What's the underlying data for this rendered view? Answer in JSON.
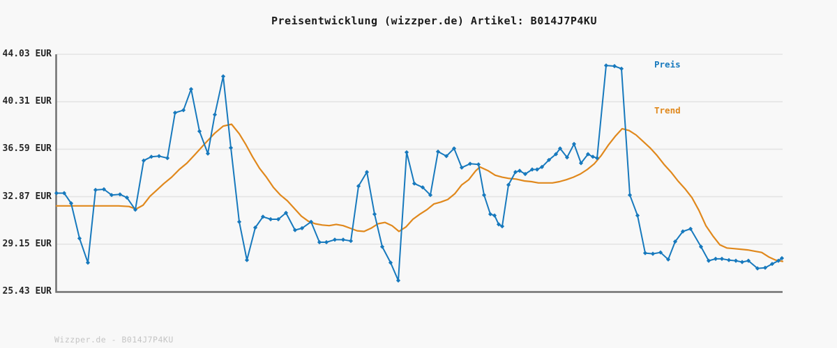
{
  "watermark": "Wizzper.de - B014J7P4KU",
  "colors": {
    "background": "#f8f8f8",
    "grid": "#e4e4e4",
    "axis": "#717171",
    "title": "#1a1a1a",
    "tick_label": "#262626",
    "watermark": "#c4c4c4",
    "price": "#1779bd",
    "trend": "#e0881c"
  },
  "chart_data": {
    "type": "line",
    "title": "Preisentwicklung (wizzper.de) Artikel: B014J7P4KU",
    "xlabel": "",
    "ylabel": "",
    "currency": "EUR",
    "ylim": [
      25.43,
      44.03
    ],
    "x_unit": "px",
    "grid": true,
    "legend_position": "top-right",
    "yticks": [
      {
        "value": 44.03,
        "label": "44.03 EUR"
      },
      {
        "value": 40.31,
        "label": "40.31 EUR"
      },
      {
        "value": 36.59,
        "label": "36.59 EUR"
      },
      {
        "value": 32.87,
        "label": "32.87 EUR"
      },
      {
        "value": 29.15,
        "label": "29.15 EUR"
      },
      {
        "value": 25.43,
        "label": "25.43 EUR"
      }
    ],
    "series": [
      {
        "name": "Trend",
        "color": "#e0881c",
        "marker": "none",
        "stroke_width": 2.2,
        "points": [
          [
            81,
            32.15
          ],
          [
            110,
            32.15
          ],
          [
            140,
            32.15
          ],
          [
            170,
            32.15
          ],
          [
            185,
            32.1
          ],
          [
            195,
            31.9
          ],
          [
            205,
            32.2
          ],
          [
            215,
            32.9
          ],
          [
            225,
            33.4
          ],
          [
            235,
            33.9
          ],
          [
            246,
            34.4
          ],
          [
            257,
            35.0
          ],
          [
            268,
            35.5
          ],
          [
            280,
            36.2
          ],
          [
            295,
            37.1
          ],
          [
            308,
            37.85
          ],
          [
            320,
            38.4
          ],
          [
            332,
            38.55
          ],
          [
            343,
            37.8
          ],
          [
            352,
            37.0
          ],
          [
            362,
            36.0
          ],
          [
            372,
            35.1
          ],
          [
            382,
            34.4
          ],
          [
            392,
            33.6
          ],
          [
            402,
            33.0
          ],
          [
            412,
            32.55
          ],
          [
            422,
            31.95
          ],
          [
            432,
            31.35
          ],
          [
            442,
            30.95
          ],
          [
            452,
            30.75
          ],
          [
            462,
            30.65
          ],
          [
            472,
            30.6
          ],
          [
            482,
            30.7
          ],
          [
            492,
            30.6
          ],
          [
            502,
            30.4
          ],
          [
            512,
            30.2
          ],
          [
            522,
            30.15
          ],
          [
            532,
            30.4
          ],
          [
            542,
            30.75
          ],
          [
            552,
            30.85
          ],
          [
            562,
            30.6
          ],
          [
            572,
            30.15
          ],
          [
            582,
            30.5
          ],
          [
            592,
            31.1
          ],
          [
            602,
            31.5
          ],
          [
            612,
            31.85
          ],
          [
            622,
            32.3
          ],
          [
            632,
            32.45
          ],
          [
            642,
            32.65
          ],
          [
            652,
            33.1
          ],
          [
            662,
            33.8
          ],
          [
            672,
            34.2
          ],
          [
            682,
            34.9
          ],
          [
            688,
            35.2
          ],
          [
            700,
            34.9
          ],
          [
            710,
            34.55
          ],
          [
            720,
            34.4
          ],
          [
            730,
            34.3
          ],
          [
            740,
            34.25
          ],
          [
            752,
            34.1
          ],
          [
            762,
            34.05
          ],
          [
            772,
            33.95
          ],
          [
            782,
            33.95
          ],
          [
            792,
            33.95
          ],
          [
            802,
            34.05
          ],
          [
            812,
            34.2
          ],
          [
            822,
            34.4
          ],
          [
            832,
            34.65
          ],
          [
            842,
            35.0
          ],
          [
            852,
            35.45
          ],
          [
            862,
            36.1
          ],
          [
            872,
            36.9
          ],
          [
            882,
            37.6
          ],
          [
            892,
            38.2
          ],
          [
            902,
            38.05
          ],
          [
            912,
            37.7
          ],
          [
            922,
            37.2
          ],
          [
            932,
            36.7
          ],
          [
            942,
            36.1
          ],
          [
            952,
            35.4
          ],
          [
            962,
            34.8
          ],
          [
            972,
            34.1
          ],
          [
            982,
            33.5
          ],
          [
            992,
            32.8
          ],
          [
            1002,
            31.8
          ],
          [
            1012,
            30.6
          ],
          [
            1022,
            29.8
          ],
          [
            1032,
            29.1
          ],
          [
            1042,
            28.85
          ],
          [
            1052,
            28.8
          ],
          [
            1062,
            28.75
          ],
          [
            1072,
            28.7
          ],
          [
            1082,
            28.6
          ],
          [
            1092,
            28.5
          ],
          [
            1102,
            28.15
          ],
          [
            1112,
            27.9
          ],
          [
            1122,
            27.8
          ]
        ]
      },
      {
        "name": "Preis",
        "color": "#1779bd",
        "marker": "diamond",
        "stroke_width": 2,
        "points": [
          [
            81,
            33.15
          ],
          [
            92,
            33.15
          ],
          [
            102,
            32.35
          ],
          [
            114,
            29.6
          ],
          [
            126,
            27.7
          ],
          [
            137,
            33.4
          ],
          [
            149,
            33.45
          ],
          [
            160,
            33.0
          ],
          [
            172,
            33.05
          ],
          [
            182,
            32.8
          ],
          [
            194,
            31.85
          ],
          [
            206,
            35.7
          ],
          [
            217,
            36.0
          ],
          [
            228,
            36.05
          ],
          [
            240,
            35.9
          ],
          [
            251,
            39.45
          ],
          [
            263,
            39.65
          ],
          [
            274,
            41.3
          ],
          [
            286,
            38.0
          ],
          [
            298,
            36.25
          ],
          [
            308,
            39.3
          ],
          [
            320,
            42.3
          ],
          [
            331,
            36.7
          ],
          [
            343,
            30.9
          ],
          [
            354,
            27.9
          ],
          [
            366,
            30.45
          ],
          [
            377,
            31.3
          ],
          [
            388,
            31.1
          ],
          [
            399,
            31.1
          ],
          [
            410,
            31.6
          ],
          [
            423,
            30.25
          ],
          [
            433,
            30.4
          ],
          [
            446,
            30.9
          ],
          [
            458,
            29.3
          ],
          [
            468,
            29.3
          ],
          [
            480,
            29.5
          ],
          [
            492,
            29.5
          ],
          [
            503,
            29.4
          ],
          [
            514,
            33.7
          ],
          [
            526,
            34.8
          ],
          [
            537,
            31.5
          ],
          [
            548,
            28.95
          ],
          [
            560,
            27.7
          ],
          [
            571,
            26.3
          ],
          [
            583,
            36.35
          ],
          [
            594,
            33.9
          ],
          [
            606,
            33.6
          ],
          [
            617,
            33.0
          ],
          [
            628,
            36.4
          ],
          [
            640,
            36.05
          ],
          [
            651,
            36.65
          ],
          [
            662,
            35.15
          ],
          [
            674,
            35.45
          ],
          [
            686,
            35.4
          ],
          [
            694,
            33.0
          ],
          [
            703,
            31.5
          ],
          [
            709,
            31.4
          ],
          [
            715,
            30.7
          ],
          [
            720,
            30.55
          ],
          [
            729,
            33.8
          ],
          [
            739,
            34.8
          ],
          [
            745,
            34.9
          ],
          [
            753,
            34.65
          ],
          [
            763,
            35.0
          ],
          [
            770,
            35.0
          ],
          [
            777,
            35.2
          ],
          [
            787,
            35.75
          ],
          [
            797,
            36.2
          ],
          [
            803,
            36.65
          ],
          [
            813,
            35.95
          ],
          [
            823,
            37.0
          ],
          [
            833,
            35.5
          ],
          [
            843,
            36.2
          ],
          [
            850,
            36.0
          ],
          [
            856,
            35.9
          ],
          [
            869,
            43.15
          ],
          [
            881,
            43.1
          ],
          [
            891,
            42.9
          ],
          [
            903,
            33.0
          ],
          [
            914,
            31.4
          ],
          [
            925,
            28.45
          ],
          [
            936,
            28.4
          ],
          [
            947,
            28.5
          ],
          [
            958,
            27.95
          ],
          [
            968,
            29.35
          ],
          [
            979,
            30.15
          ],
          [
            990,
            30.35
          ],
          [
            1005,
            28.95
          ],
          [
            1016,
            27.85
          ],
          [
            1026,
            28.0
          ],
          [
            1035,
            28.0
          ],
          [
            1045,
            27.9
          ],
          [
            1055,
            27.85
          ],
          [
            1064,
            27.75
          ],
          [
            1073,
            27.85
          ],
          [
            1086,
            27.25
          ],
          [
            1097,
            27.3
          ],
          [
            1107,
            27.6
          ],
          [
            1116,
            27.85
          ],
          [
            1121,
            28.05
          ]
        ]
      }
    ]
  }
}
